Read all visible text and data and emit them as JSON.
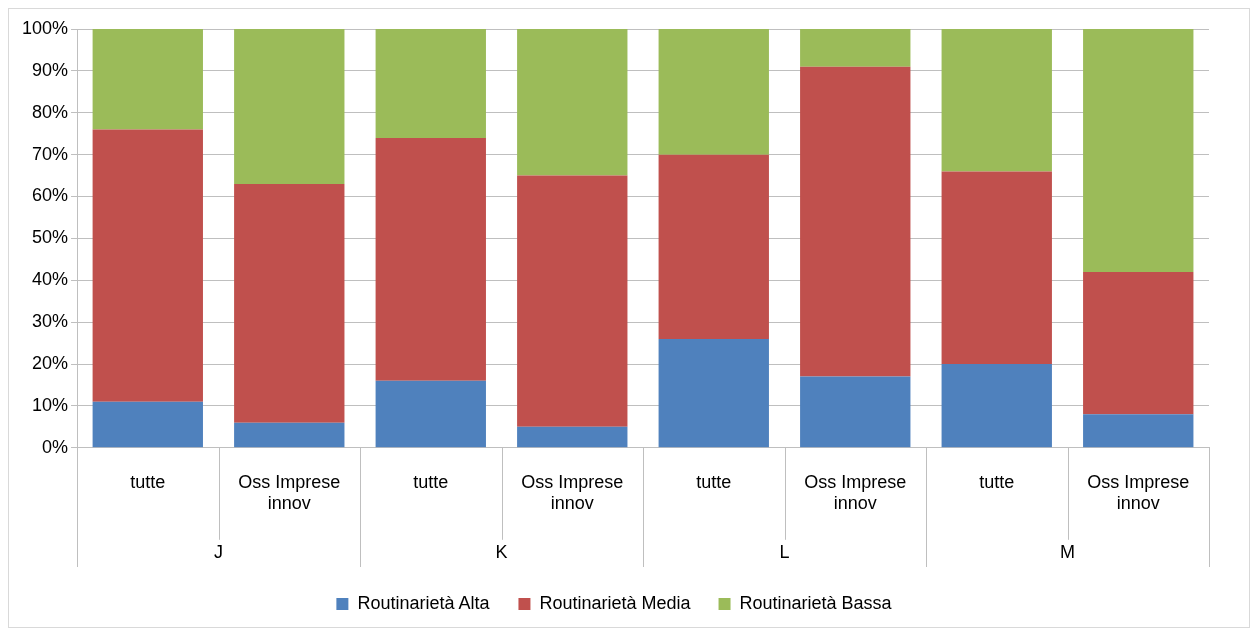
{
  "chart_data": {
    "type": "bar",
    "stacked": true,
    "categories": [
      "tutte",
      "Oss Imprese innov",
      "tutte",
      "Oss Imprese innov",
      "tutte",
      "Oss Imprese innov",
      "tutte",
      "Oss Imprese innov"
    ],
    "series": [
      {
        "name": "Routinarietà Alta",
        "color": "#4f81bd",
        "values": [
          11,
          6,
          16,
          5,
          26,
          17,
          20,
          8
        ]
      },
      {
        "name": "Routinarietà Media",
        "color": "#c0504d",
        "values": [
          65,
          57,
          58,
          60,
          44,
          74,
          46,
          34
        ]
      },
      {
        "name": "Routinarietà Bassa",
        "color": "#9bbb59",
        "values": [
          24,
          37,
          26,
          35,
          30,
          9,
          34,
          58
        ]
      }
    ],
    "ylim": [
      0,
      100
    ],
    "yticks": [
      {
        "value": 0,
        "label": "0%"
      },
      {
        "value": 10,
        "label": "10%"
      },
      {
        "value": 20,
        "label": "20%"
      },
      {
        "value": 30,
        "label": "30%"
      },
      {
        "value": 40,
        "label": "40%"
      },
      {
        "value": 50,
        "label": "50%"
      },
      {
        "value": 60,
        "label": "60%"
      },
      {
        "value": 70,
        "label": "70%"
      },
      {
        "value": 80,
        "label": "80%"
      },
      {
        "value": 90,
        "label": "90%"
      },
      {
        "value": 100,
        "label": "100%"
      }
    ],
    "grid": "y",
    "legend": "bottom",
    "annotations": [
      "J",
      "K",
      "L",
      "M"
    ]
  }
}
